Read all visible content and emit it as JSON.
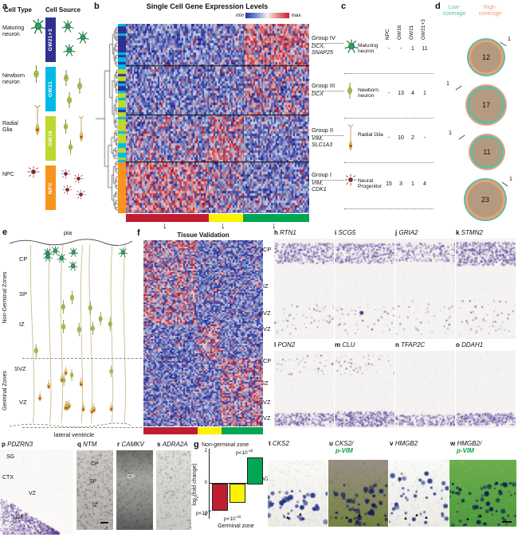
{
  "a": {
    "letter": "a",
    "title": "Cell Type",
    "types": [
      {
        "name": "Maturing neuron"
      },
      {
        "name": "Newborn neuron"
      },
      {
        "name": "Radial Glia"
      },
      {
        "name": "NPC"
      }
    ]
  },
  "source": {
    "title": "Cell Source",
    "items": [
      {
        "label": "GW21+3",
        "color": "#2e3192"
      },
      {
        "label": "GW21",
        "color": "#00b9e8"
      },
      {
        "label": "GW16",
        "color": "#bfd730"
      },
      {
        "label": "NPC",
        "color": "#f7941e"
      }
    ]
  },
  "b": {
    "letter": "b",
    "title": "Single Cell Gene Expression Levels",
    "scale_min": "min",
    "scale_max": "max",
    "groups": [
      {
        "name": "Group IV",
        "genes": [
          "DCX,",
          "SNAP25"
        ]
      },
      {
        "name": "Group III",
        "genes": [
          "DCX"
        ]
      },
      {
        "name": "Group II",
        "genes": [
          "VIM,",
          "SLC1A3"
        ]
      },
      {
        "name": "Group I",
        "genes": [
          "VIM,",
          "CDK1"
        ]
      }
    ]
  },
  "c": {
    "letter": "c",
    "col_headers": [
      "NPC",
      "GW16",
      "GW21",
      "GW21+3"
    ],
    "rows": [
      {
        "type": "Maturing neuron",
        "values": [
          "-",
          "-",
          "1",
          "11"
        ]
      },
      {
        "type": "Newborn neuron",
        "values": [
          "-",
          "13",
          "4",
          "1"
        ]
      },
      {
        "type": "Radial Glia",
        "values": [
          "-",
          "10",
          "2",
          "-"
        ]
      },
      {
        "type": "Neural Progenitor",
        "values": [
          "15",
          "3",
          "1",
          "4"
        ]
      }
    ]
  },
  "d": {
    "letter": "d",
    "legend_low": "Low-coverage",
    "legend_high": "High-coverage",
    "circles": [
      {
        "value": "12",
        "unique": "1"
      },
      {
        "value": "17",
        "unique": "1"
      },
      {
        "value": "11",
        "unique": "1"
      },
      {
        "value": "23",
        "unique": "1"
      }
    ]
  },
  "e": {
    "letter": "e",
    "pia": "pia",
    "zones": [
      "CP",
      "SP",
      "IZ",
      "SVZ",
      "VZ"
    ],
    "left_top": "Non-Germinal Zones",
    "left_bottom": "Germinal Zones",
    "bottom": "lateral ventricle"
  },
  "f": {
    "letter": "f",
    "title": "Tissue Validation"
  },
  "g": {
    "letter": "g"
  },
  "chart_data": {
    "type": "bar",
    "categories": [
      "red cluster",
      "yellow cluster",
      "green cluster"
    ],
    "values": [
      -1.6,
      -1.1,
      1.6
    ],
    "colors": [
      "#be1e2d",
      "#fff200",
      "#00a651"
    ],
    "pvalues": [
      {
        "base": "p<10",
        "exp": "-9"
      },
      {
        "base": "p<10",
        "exp": "-10"
      },
      {
        "base": "p<10",
        "exp": "-18"
      }
    ],
    "ylabel": {
      "pre": "log",
      "sub": "2",
      "post": "(fold change)"
    },
    "yticks": [
      "2",
      "0",
      "-2"
    ],
    "ylim": [
      -2.2,
      2.2
    ],
    "region_positive": "Non-germinal zone",
    "region_negative": "Germinal zone"
  },
  "ish_top": {
    "zones": [
      "CP",
      "IZ",
      "SVZ",
      "VZ"
    ],
    "panels": [
      {
        "letter": "h",
        "gene": "RTN1"
      },
      {
        "letter": "i",
        "gene": "SCG5"
      },
      {
        "letter": "j",
        "gene": "GRIA2"
      },
      {
        "letter": "k",
        "gene": "STMN2"
      }
    ]
  },
  "ish_bottom": {
    "zones": [
      "CP",
      "IZ",
      "SVZ",
      "VZ"
    ],
    "panels": [
      {
        "letter": "l",
        "gene": "PON2"
      },
      {
        "letter": "m",
        "gene": "CLU"
      },
      {
        "letter": "n",
        "gene": "TFAP2C"
      },
      {
        "letter": "o",
        "gene": "DDAH1"
      }
    ]
  },
  "p": {
    "letter": "p",
    "gene": "PDZRN3",
    "labels": [
      "SG",
      "CTX",
      "VZ",
      "LGE"
    ]
  },
  "qrs": {
    "panels": [
      {
        "letter": "q",
        "gene": "NTM",
        "inner": [
          "CP",
          "SP",
          "IZ"
        ]
      },
      {
        "letter": "r",
        "gene": "CAMKV",
        "inner": [
          "CP"
        ]
      },
      {
        "letter": "s",
        "gene": "ADRA2A",
        "inner": []
      }
    ]
  },
  "tw": {
    "vz": "VZ",
    "panels": [
      {
        "letter": "t",
        "gene": "CKS2",
        "second": ""
      },
      {
        "letter": "u",
        "gene": "CKS2/",
        "second": "p-VIM"
      },
      {
        "letter": "v",
        "gene": "HMGB2",
        "second": ""
      },
      {
        "letter": "w",
        "gene": "HMGB2/",
        "second": "p-VIM"
      }
    ]
  },
  "colors": {
    "cluster_red": "#be1e2d",
    "cluster_yellow": "#fff200",
    "cluster_green": "#00a651",
    "low_coverage": "#5ebcaa",
    "high_coverage": "#ef9f72",
    "venn_fill": "#b49b80",
    "pvim_label": "#14a04a",
    "heat_low": "#2333a0",
    "heat_high": "#c8202a"
  },
  "icons": {
    "down_arrow": "↓",
    "up_arrow": "▲"
  }
}
